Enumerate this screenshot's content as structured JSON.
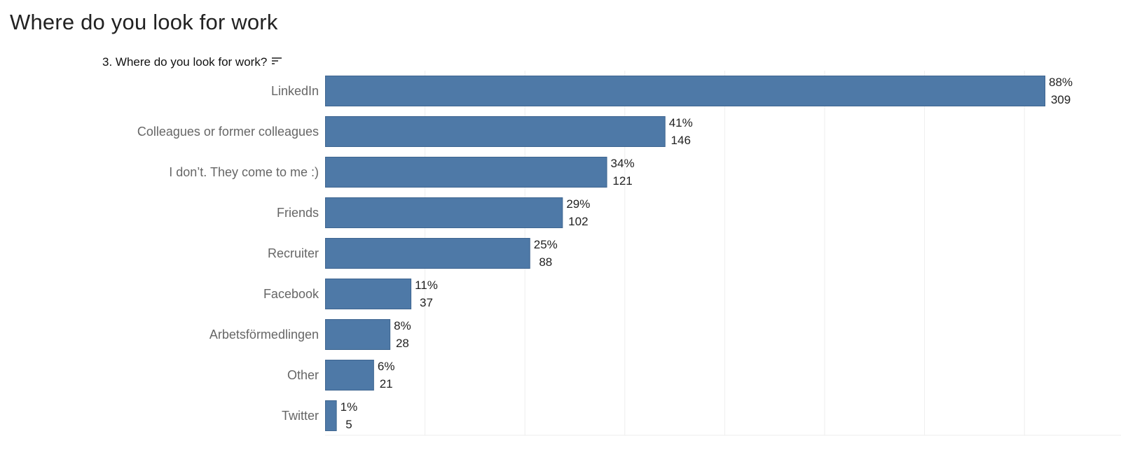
{
  "page": {
    "title": "Where do you look for work"
  },
  "chart_header": {
    "question": "3. Where do you look for work?",
    "sort_icon": "sort-descending-icon"
  },
  "chart_data": {
    "type": "bar",
    "orientation": "horizontal",
    "title": "3. Where do you look for work?",
    "categories": [
      "LinkedIn",
      "Colleagues or former colleagues",
      "I don’t. They come to me :)",
      "Friends",
      "Recruiter",
      "Facebook",
      "Arbetsförmedlingen",
      "Other",
      "Twitter"
    ],
    "series": [
      {
        "values": [
          309,
          146,
          121,
          102,
          88,
          37,
          28,
          21,
          5
        ],
        "percent_labels": [
          "88%",
          "41%",
          "34%",
          "29%",
          "25%",
          "11%",
          "8%",
          "6%",
          "1%"
        ],
        "count_labels": [
          "309",
          "146",
          "121",
          "102",
          "88",
          "37",
          "28",
          "21",
          "5"
        ]
      }
    ],
    "xlim": [
      0,
      330
    ],
    "grid": true,
    "axis_ticks_visible": false,
    "colors": {
      "bar_fill": "#4e79a7",
      "bar_stroke": "#3e6590",
      "gridline": "#eeeeee",
      "category_text": "#666666",
      "value_text": "#222222"
    }
  }
}
